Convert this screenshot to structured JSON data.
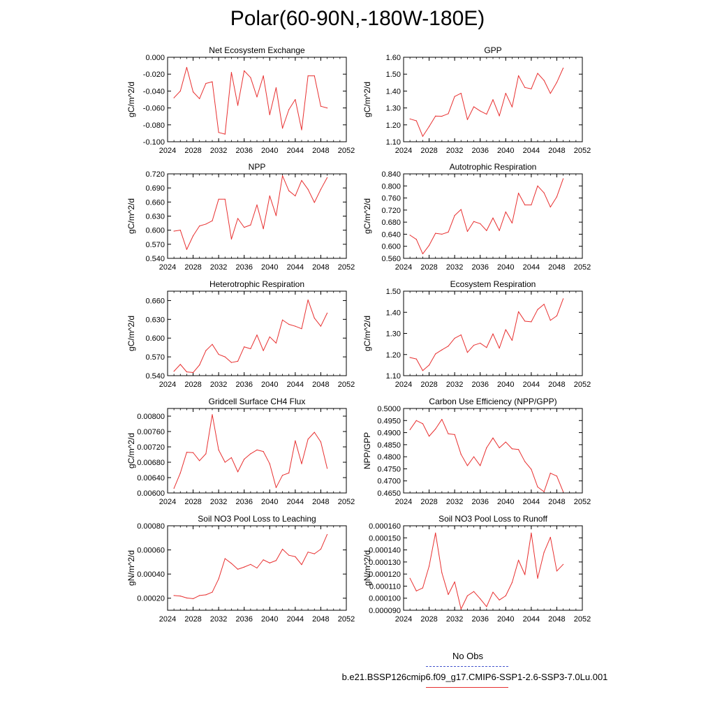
{
  "figure": {
    "title": "Polar(60-90N,-180W-180E)",
    "legend": {
      "obs_label": "No Obs",
      "model_label": "b.e21.BSSP126cmip6.f09_g17.CMIP6-SSP1-2.6-SSP3-7.0Lu.001",
      "obs_color": "#4455cc",
      "model_color": "#e83030"
    }
  },
  "chart_data": [
    {
      "type": "line",
      "title": "Net Ecosystem Exchange",
      "ylabel": "gC/m^2/d",
      "xlim": [
        2024,
        2052
      ],
      "xticks": [
        "2024",
        "2028",
        "2032",
        "2036",
        "2040",
        "2044",
        "2048",
        "2052"
      ],
      "ylim": [
        -0.1,
        0.0
      ],
      "yticks": [
        "-0.100",
        "-0.080",
        "-0.060",
        "-0.040",
        "-0.020",
        "0.000"
      ],
      "ytick_values": [
        -0.1,
        -0.08,
        -0.06,
        -0.04,
        -0.02,
        0.0
      ],
      "x": [
        2025,
        2026,
        2027,
        2028,
        2029,
        2030,
        2031,
        2032,
        2033,
        2034,
        2035,
        2036,
        2037,
        2038,
        2039,
        2040,
        2041,
        2042,
        2043,
        2044,
        2045,
        2046,
        2047,
        2048,
        2049
      ],
      "series": [
        {
          "values": [
            -0.048,
            -0.04,
            -0.012,
            -0.041,
            -0.049,
            -0.031,
            -0.029,
            -0.089,
            -0.091,
            -0.018,
            -0.057,
            -0.016,
            -0.024,
            -0.047,
            -0.022,
            -0.068,
            -0.036,
            -0.084,
            -0.062,
            -0.05,
            -0.086,
            -0.022,
            -0.022,
            -0.058,
            -0.06
          ],
          "color": "#e83030"
        }
      ]
    },
    {
      "type": "line",
      "title": "GPP",
      "ylabel": "gC/m^2/d",
      "xlim": [
        2024,
        2052
      ],
      "xticks": [
        "2024",
        "2028",
        "2032",
        "2036",
        "2040",
        "2044",
        "2048",
        "2052"
      ],
      "ylim": [
        1.1,
        1.6
      ],
      "yticks": [
        "1.10",
        "1.20",
        "1.30",
        "1.40",
        "1.50",
        "1.60"
      ],
      "ytick_values": [
        1.1,
        1.2,
        1.3,
        1.4,
        1.5,
        1.6
      ],
      "x": [
        2025,
        2026,
        2027,
        2028,
        2029,
        2030,
        2031,
        2032,
        2033,
        2034,
        2035,
        2036,
        2037,
        2038,
        2039,
        2040,
        2041,
        2042,
        2043,
        2044,
        2045,
        2046,
        2047,
        2048,
        2049
      ],
      "series": [
        {
          "values": [
            1.235,
            1.224,
            1.132,
            1.19,
            1.252,
            1.251,
            1.266,
            1.368,
            1.387,
            1.231,
            1.307,
            1.282,
            1.263,
            1.349,
            1.253,
            1.387,
            1.306,
            1.491,
            1.421,
            1.413,
            1.505,
            1.463,
            1.386,
            1.451,
            1.536
          ],
          "color": "#e83030"
        }
      ]
    },
    {
      "type": "line",
      "title": "NPP",
      "ylabel": "gC/m^2/d",
      "xlim": [
        2024,
        2052
      ],
      "xticks": [
        "2024",
        "2028",
        "2032",
        "2036",
        "2040",
        "2044",
        "2048",
        "2052"
      ],
      "ylim": [
        0.54,
        0.72
      ],
      "yticks": [
        "0.540",
        "0.570",
        "0.600",
        "0.630",
        "0.660",
        "0.690",
        "0.720"
      ],
      "ytick_values": [
        0.54,
        0.57,
        0.6,
        0.63,
        0.66,
        0.69,
        0.72
      ],
      "x": [
        2025,
        2026,
        2027,
        2028,
        2029,
        2030,
        2031,
        2032,
        2033,
        2034,
        2035,
        2036,
        2037,
        2038,
        2039,
        2040,
        2041,
        2042,
        2043,
        2044,
        2045,
        2046,
        2047,
        2048,
        2049
      ],
      "series": [
        {
          "values": [
            0.598,
            0.6,
            0.559,
            0.588,
            0.609,
            0.613,
            0.62,
            0.666,
            0.666,
            0.581,
            0.625,
            0.606,
            0.611,
            0.654,
            0.603,
            0.673,
            0.631,
            0.716,
            0.684,
            0.673,
            0.706,
            0.687,
            0.659,
            0.687,
            0.712
          ],
          "color": "#e83030"
        }
      ]
    },
    {
      "type": "line",
      "title": "Autotrophic Respiration",
      "ylabel": "gC/m^2/d",
      "xlim": [
        2024,
        2052
      ],
      "xticks": [
        "2024",
        "2028",
        "2032",
        "2036",
        "2040",
        "2044",
        "2048",
        "2052"
      ],
      "ylim": [
        0.56,
        0.84
      ],
      "yticks": [
        "0.560",
        "0.600",
        "0.640",
        "0.680",
        "0.720",
        "0.760",
        "0.800",
        "0.840"
      ],
      "ytick_values": [
        0.56,
        0.6,
        0.64,
        0.68,
        0.72,
        0.76,
        0.8,
        0.84
      ],
      "x": [
        2025,
        2026,
        2027,
        2028,
        2029,
        2030,
        2031,
        2032,
        2033,
        2034,
        2035,
        2036,
        2037,
        2038,
        2039,
        2040,
        2041,
        2042,
        2043,
        2044,
        2045,
        2046,
        2047,
        2048,
        2049
      ],
      "series": [
        {
          "values": [
            0.637,
            0.623,
            0.575,
            0.603,
            0.643,
            0.64,
            0.647,
            0.702,
            0.722,
            0.649,
            0.682,
            0.675,
            0.652,
            0.694,
            0.652,
            0.714,
            0.677,
            0.776,
            0.737,
            0.737,
            0.8,
            0.777,
            0.73,
            0.764,
            0.824
          ],
          "color": "#e83030"
        }
      ]
    },
    {
      "type": "line",
      "title": "Heterotrophic Respiration",
      "ylabel": "gC/m^2/d",
      "xlim": [
        2024,
        2052
      ],
      "xticks": [
        "2024",
        "2028",
        "2032",
        "2036",
        "2040",
        "2044",
        "2048",
        "2052"
      ],
      "ylim": [
        0.54,
        0.675
      ],
      "yticks": [
        "0.540",
        "0.570",
        "0.600",
        "0.630",
        "0.660"
      ],
      "ytick_values": [
        0.54,
        0.57,
        0.6,
        0.63,
        0.66
      ],
      "x": [
        2025,
        2026,
        2027,
        2028,
        2029,
        2030,
        2031,
        2032,
        2033,
        2034,
        2035,
        2036,
        2037,
        2038,
        2039,
        2040,
        2041,
        2042,
        2043,
        2044,
        2045,
        2046,
        2047,
        2048,
        2049
      ],
      "series": [
        {
          "values": [
            0.547,
            0.558,
            0.546,
            0.545,
            0.557,
            0.58,
            0.59,
            0.574,
            0.57,
            0.561,
            0.563,
            0.586,
            0.583,
            0.605,
            0.58,
            0.602,
            0.592,
            0.629,
            0.622,
            0.619,
            0.615,
            0.661,
            0.632,
            0.619,
            0.64
          ],
          "color": "#e83030"
        }
      ]
    },
    {
      "type": "line",
      "title": "Ecosystem Respiration",
      "ylabel": "gC/m^2/d",
      "xlim": [
        2024,
        2052
      ],
      "xticks": [
        "2024",
        "2028",
        "2032",
        "2036",
        "2040",
        "2044",
        "2048",
        "2052"
      ],
      "ylim": [
        1.1,
        1.5
      ],
      "yticks": [
        "1.10",
        "1.20",
        "1.30",
        "1.40",
        "1.50"
      ],
      "ytick_values": [
        1.1,
        1.2,
        1.3,
        1.4,
        1.5
      ],
      "x": [
        2025,
        2026,
        2027,
        2028,
        2029,
        2030,
        2031,
        2032,
        2033,
        2034,
        2035,
        2036,
        2037,
        2038,
        2039,
        2040,
        2041,
        2042,
        2043,
        2044,
        2045,
        2046,
        2047,
        2048,
        2049
      ],
      "series": [
        {
          "values": [
            1.186,
            1.179,
            1.124,
            1.15,
            1.203,
            1.222,
            1.24,
            1.277,
            1.293,
            1.21,
            1.244,
            1.254,
            1.233,
            1.298,
            1.23,
            1.318,
            1.267,
            1.403,
            1.358,
            1.355,
            1.413,
            1.438,
            1.362,
            1.383,
            1.464
          ],
          "color": "#e83030"
        }
      ]
    },
    {
      "type": "line",
      "title": "Gridcell Surface CH4 Flux",
      "ylabel": "gC/m^2/d",
      "xlim": [
        2024,
        2052
      ],
      "xticks": [
        "2024",
        "2028",
        "2032",
        "2036",
        "2040",
        "2044",
        "2048",
        "2052"
      ],
      "ylim": [
        0.006,
        0.0082
      ],
      "yticks": [
        "0.00600",
        "0.00640",
        "0.00680",
        "0.00720",
        "0.00760",
        "0.00800"
      ],
      "ytick_values": [
        0.006,
        0.0064,
        0.0068,
        0.0072,
        0.0076,
        0.008
      ],
      "x": [
        2025,
        2026,
        2027,
        2028,
        2029,
        2030,
        2031,
        2032,
        2033,
        2034,
        2035,
        2036,
        2037,
        2038,
        2039,
        2040,
        2041,
        2042,
        2043,
        2044,
        2045,
        2046,
        2047,
        2048,
        2049
      ],
      "series": [
        {
          "values": [
            0.00612,
            0.00652,
            0.00706,
            0.00705,
            0.00684,
            0.00702,
            0.00804,
            0.00712,
            0.0068,
            0.00692,
            0.00655,
            0.00688,
            0.00702,
            0.00712,
            0.00708,
            0.00676,
            0.00614,
            0.00646,
            0.00652,
            0.00736,
            0.00676,
            0.0074,
            0.00758,
            0.00733,
            0.00664
          ],
          "color": "#e83030"
        }
      ]
    },
    {
      "type": "line",
      "title": "Carbon Use Efficiency (NPP/GPP)",
      "ylabel": "NPP/GPP",
      "xlim": [
        2024,
        2052
      ],
      "xticks": [
        "2024",
        "2028",
        "2032",
        "2036",
        "2040",
        "2044",
        "2048",
        "2052"
      ],
      "ylim": [
        0.465,
        0.5
      ],
      "yticks": [
        "0.4650",
        "0.4700",
        "0.4750",
        "0.4800",
        "0.4850",
        "0.4900",
        "0.4950",
        "0.5000"
      ],
      "ytick_values": [
        0.465,
        0.47,
        0.475,
        0.48,
        0.485,
        0.49,
        0.495,
        0.5
      ],
      "x": [
        2025,
        2026,
        2027,
        2028,
        2029,
        2030,
        2031,
        2032,
        2033,
        2034,
        2035,
        2036,
        2037,
        2038,
        2039,
        2040,
        2041,
        2042,
        2043,
        2044,
        2045,
        2046,
        2047,
        2048,
        2049
      ],
      "series": [
        {
          "values": [
            0.4912,
            0.495,
            0.4937,
            0.4885,
            0.4915,
            0.4955,
            0.4895,
            0.4892,
            0.481,
            0.4763,
            0.48,
            0.4763,
            0.4837,
            0.4878,
            0.4837,
            0.4861,
            0.4833,
            0.483,
            0.478,
            0.4748,
            0.4675,
            0.4655,
            0.4732,
            0.472,
            0.4655
          ],
          "color": "#e83030"
        }
      ]
    },
    {
      "type": "line",
      "title": "Soil NO3 Pool Loss to Leaching",
      "ylabel": "gN/m^2/d",
      "xlim": [
        2024,
        2052
      ],
      "xticks": [
        "2024",
        "2028",
        "2032",
        "2036",
        "2040",
        "2044",
        "2048",
        "2052"
      ],
      "ylim": [
        0.0001,
        0.0008
      ],
      "yticks": [
        "0.00020",
        "0.00040",
        "0.00060",
        "0.00080"
      ],
      "ytick_values": [
        0.0002,
        0.0004,
        0.0006,
        0.0008
      ],
      "x": [
        2025,
        2026,
        2027,
        2028,
        2029,
        2030,
        2031,
        2032,
        2033,
        2034,
        2035,
        2036,
        2037,
        2038,
        2039,
        2040,
        2041,
        2042,
        2043,
        2044,
        2045,
        2046,
        2047,
        2048,
        2049
      ],
      "series": [
        {
          "values": [
            0.000222,
            0.000218,
            0.000202,
            0.000196,
            0.000222,
            0.000228,
            0.00025,
            0.00036,
            0.000528,
            0.000488,
            0.00044,
            0.000458,
            0.00048,
            0.00045,
            0.000518,
            0.000492,
            0.000512,
            0.000606,
            0.000556,
            0.000544,
            0.000478,
            0.000582,
            0.000568,
            0.000606,
            0.000728
          ],
          "color": "#e83030"
        }
      ]
    },
    {
      "type": "line",
      "title": "Soil NO3 Pool Loss to Runoff",
      "ylabel": "gN/m^2/d",
      "xlim": [
        2024,
        2052
      ],
      "xticks": [
        "2024",
        "2028",
        "2032",
        "2036",
        "2040",
        "2044",
        "2048",
        "2052"
      ],
      "ylim": [
        9e-05,
        0.00016
      ],
      "yticks": [
        "0.000090",
        "0.000100",
        "0.000110",
        "0.000120",
        "0.000130",
        "0.000140",
        "0.000150",
        "0.000160"
      ],
      "ytick_values": [
        9e-05,
        0.0001,
        0.00011,
        0.00012,
        0.00013,
        0.00014,
        0.00015,
        0.00016
      ],
      "x": [
        2025,
        2026,
        2027,
        2028,
        2029,
        2030,
        2031,
        2032,
        2033,
        2034,
        2035,
        2036,
        2037,
        2038,
        2039,
        2040,
        2041,
        2042,
        2043,
        2044,
        2045,
        2046,
        2047,
        2048,
        2049
      ],
      "series": [
        {
          "values": [
            0.0001165,
            0.000106,
            0.0001085,
            0.0001265,
            0.000154,
            0.000121,
            0.000103,
            0.0001135,
            9.1e-05,
            0.000102,
            0.0001055,
            9.95e-05,
            9.3e-05,
            0.000105,
            9.85e-05,
            0.000102,
            0.000113,
            0.0001315,
            0.0001195,
            0.000154,
            0.0001165,
            0.000138,
            0.0001505,
            0.0001225,
            0.000128
          ],
          "color": "#e83030"
        }
      ]
    }
  ]
}
